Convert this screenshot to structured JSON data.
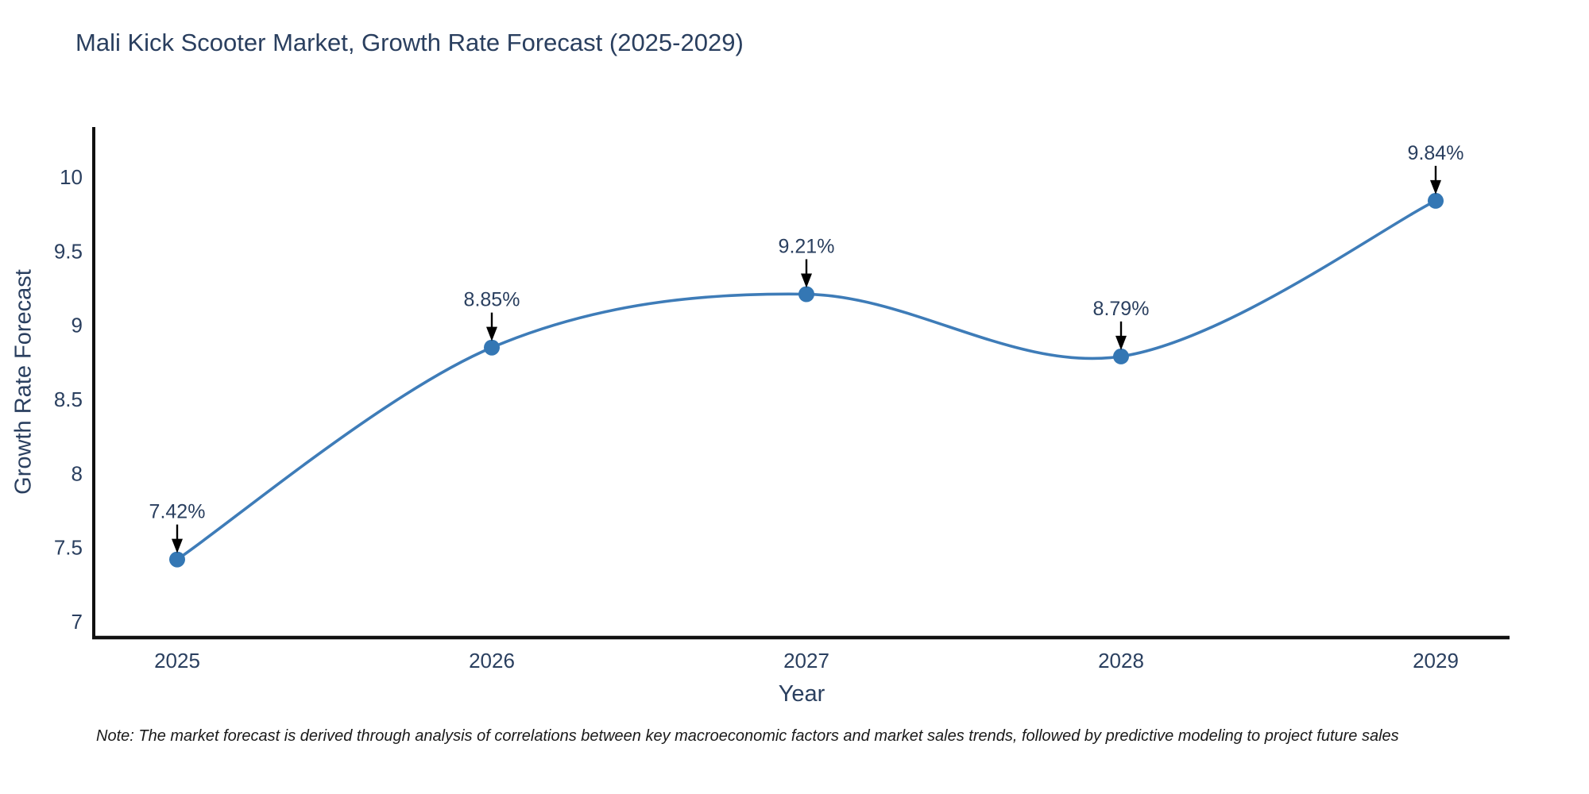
{
  "chart_data": {
    "type": "line",
    "title": "Mali Kick Scooter Market, Growth Rate Forecast (2025-2029)",
    "xlabel": "Year",
    "ylabel": "Growth Rate Forecast",
    "categories": [
      "2025",
      "2026",
      "2027",
      "2028",
      "2029"
    ],
    "values": [
      7.42,
      8.85,
      9.21,
      8.79,
      9.84
    ],
    "point_labels": [
      "7.42%",
      "8.85%",
      "9.21%",
      "8.79%",
      "9.84%"
    ],
    "ytick_values": [
      7,
      7.5,
      8,
      8.5,
      9,
      9.5,
      10
    ],
    "ytick_labels": [
      "7",
      "7.5",
      "8",
      "8.5",
      "9",
      "9.5",
      "10"
    ],
    "ylim": [
      6.89,
      10.44
    ],
    "grid": "off",
    "legend": "none",
    "line_shape": "spline",
    "note": "Note: The market forecast is derived through analysis of correlations between key macroeconomic factors and market sales trends, followed by predictive modeling to project future sales",
    "colors": {
      "line": "#3e7cb8",
      "marker": "#3477b4",
      "axis": "#111111",
      "text": "#2a3f5f",
      "annotation_arrow": "#000000",
      "background": "#ffffff"
    }
  }
}
